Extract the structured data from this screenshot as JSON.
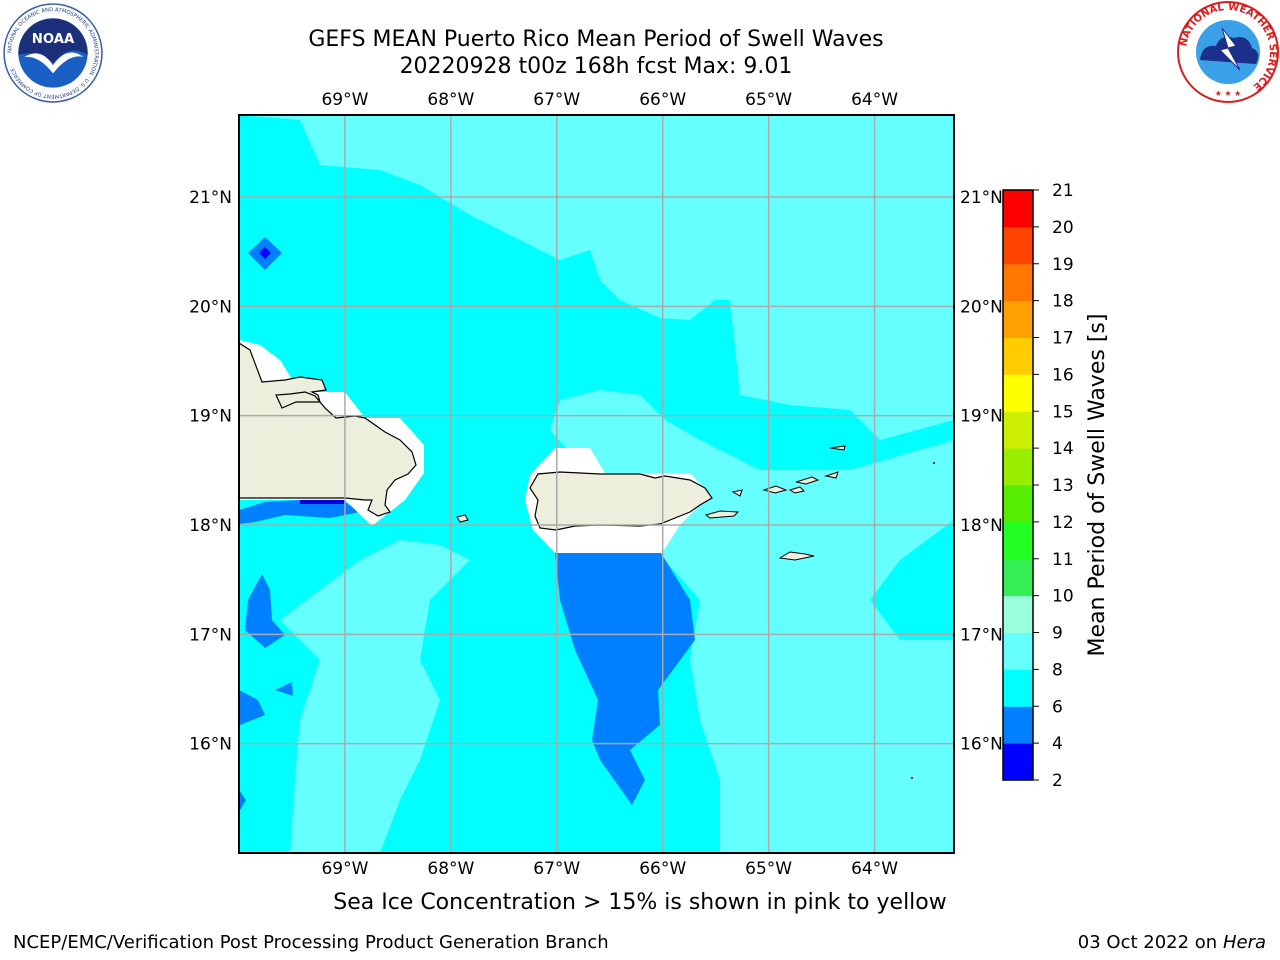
{
  "title": {
    "line1": "GEFS MEAN Puerto Rico Mean Period of Swell Waves",
    "line2": "20220928 t00z 168h fcst   Max: 9.01"
  },
  "map": {
    "lon_labels": [
      "69°W",
      "68°W",
      "67°W",
      "66°W",
      "65°W",
      "64°W"
    ],
    "lon_values": [
      -69,
      -68,
      -67,
      -66,
      -65,
      -64
    ],
    "lat_labels": [
      "21°N",
      "20°N",
      "19°N",
      "18°N",
      "17°N",
      "16°N"
    ],
    "lat_values": [
      21,
      20,
      19,
      18,
      17,
      16
    ],
    "extent": {
      "lon_min": -70,
      "lon_max": -63.25,
      "lat_min": 15.0,
      "lat_max": 21.75
    },
    "colors": {
      "land": "#eeeedd",
      "gridline": "#aaaaaa"
    }
  },
  "colorbar": {
    "label": "Mean Period of Swell Waves [s]",
    "ticks": [
      "2",
      "4",
      "6",
      "8",
      "9",
      "10",
      "11",
      "12",
      "13",
      "14",
      "15",
      "16",
      "17",
      "18",
      "19",
      "20",
      "21"
    ],
    "levels": [
      2,
      4,
      6,
      8,
      9,
      10,
      11,
      12,
      13,
      14,
      15,
      16,
      17,
      18,
      19,
      20,
      21
    ],
    "colors": [
      "#0000ff",
      "#0080ff",
      "#00ffff",
      "#66ffff",
      "#99ffdd",
      "#33ee55",
      "#22ff22",
      "#55ee00",
      "#99ee00",
      "#ccee00",
      "#ffff00",
      "#ffcc00",
      "#ffa000",
      "#ff7700",
      "#ff4400",
      "#ff0000"
    ]
  },
  "note": "Sea Ice Concentration > 15% is shown in pink to yellow",
  "footer": {
    "left": "NCEP/EMC/Verification Post Processing Product Generation Branch",
    "right_date": "03 Oct 2022 on ",
    "right_machine": "Hera"
  },
  "logos": {
    "noaa_text": "NOAA",
    "noaa_ring": "NATIONAL OCEANIC AND ATMOSPHERIC ADMINISTRATION · U.S. DEPARTMENT OF COMMERCE",
    "nws_ring": "NATIONAL WEATHER SERVICE"
  }
}
